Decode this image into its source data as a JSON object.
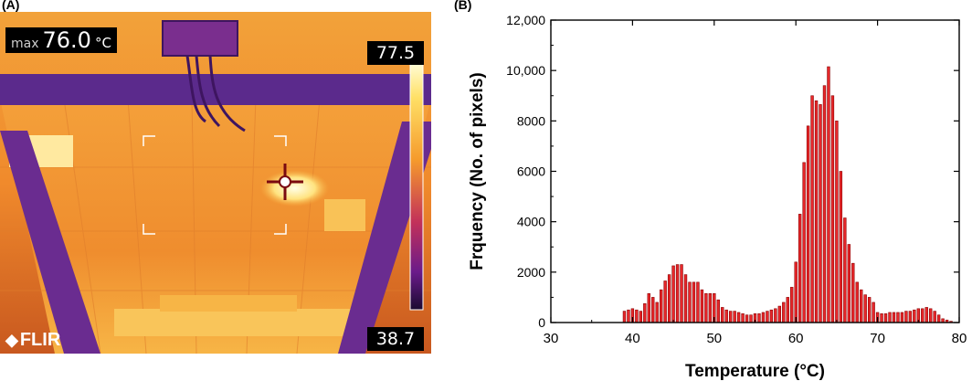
{
  "panel_a": {
    "label": "(A)",
    "max_label": "max",
    "max_value": "76.0",
    "unit": "°C",
    "scale_top": "77.5",
    "scale_bottom": "38.7",
    "logo": "FLIR"
  },
  "panel_b": {
    "label": "(B)"
  },
  "chart_data": {
    "type": "bar",
    "xlabel": "Temperature (°C)",
    "ylabel": "Frquency (No. of pixels)",
    "xlim": [
      30,
      80
    ],
    "ylim": [
      0,
      12000
    ],
    "x_ticks": [
      30,
      40,
      50,
      60,
      70,
      80
    ],
    "y_ticks": [
      0,
      2000,
      4000,
      6000,
      8000,
      10000,
      12000
    ],
    "y_tick_labels": [
      "0",
      "2000",
      "4000",
      "6000",
      "8000",
      "10,000",
      "12,000"
    ],
    "grid": false,
    "legend": "none",
    "bar_color": "#e8272a",
    "x": [
      39,
      39.5,
      40,
      40.5,
      41,
      41.5,
      42,
      42.5,
      43,
      43.5,
      44,
      44.5,
      45,
      45.5,
      46,
      46.5,
      47,
      47.5,
      48,
      48.5,
      49,
      49.5,
      50,
      50.5,
      51,
      51.5,
      52,
      52.5,
      53,
      53.5,
      54,
      54.5,
      55,
      55.5,
      56,
      56.5,
      57,
      57.5,
      58,
      58.5,
      59,
      59.5,
      60,
      60.5,
      61,
      61.5,
      62,
      62.5,
      63,
      63.5,
      64,
      64.5,
      65,
      65.5,
      66,
      66.5,
      67,
      67.5,
      68,
      68.5,
      69,
      69.5,
      70,
      70.5,
      71,
      71.5,
      72,
      72.5,
      73,
      73.5,
      74,
      74.5,
      75,
      75.5,
      76,
      76.5,
      77,
      77.5,
      78,
      78.5,
      79
    ],
    "values": [
      450,
      500,
      550,
      500,
      450,
      750,
      1150,
      1000,
      800,
      1300,
      1650,
      1900,
      2250,
      2300,
      2300,
      1900,
      1600,
      1600,
      1600,
      1300,
      1150,
      1150,
      1150,
      900,
      600,
      500,
      450,
      450,
      400,
      350,
      300,
      300,
      350,
      350,
      400,
      450,
      500,
      550,
      650,
      800,
      1000,
      1400,
      2400,
      4300,
      6350,
      7800,
      9000,
      8800,
      8650,
      9400,
      10150,
      9000,
      8000,
      6000,
      4150,
      3100,
      2350,
      1600,
      1300,
      1100,
      1000,
      800,
      400,
      350,
      350,
      400,
      400,
      400,
      400,
      450,
      450,
      500,
      550,
      550,
      600,
      550,
      450,
      300,
      150,
      100,
      50
    ]
  }
}
